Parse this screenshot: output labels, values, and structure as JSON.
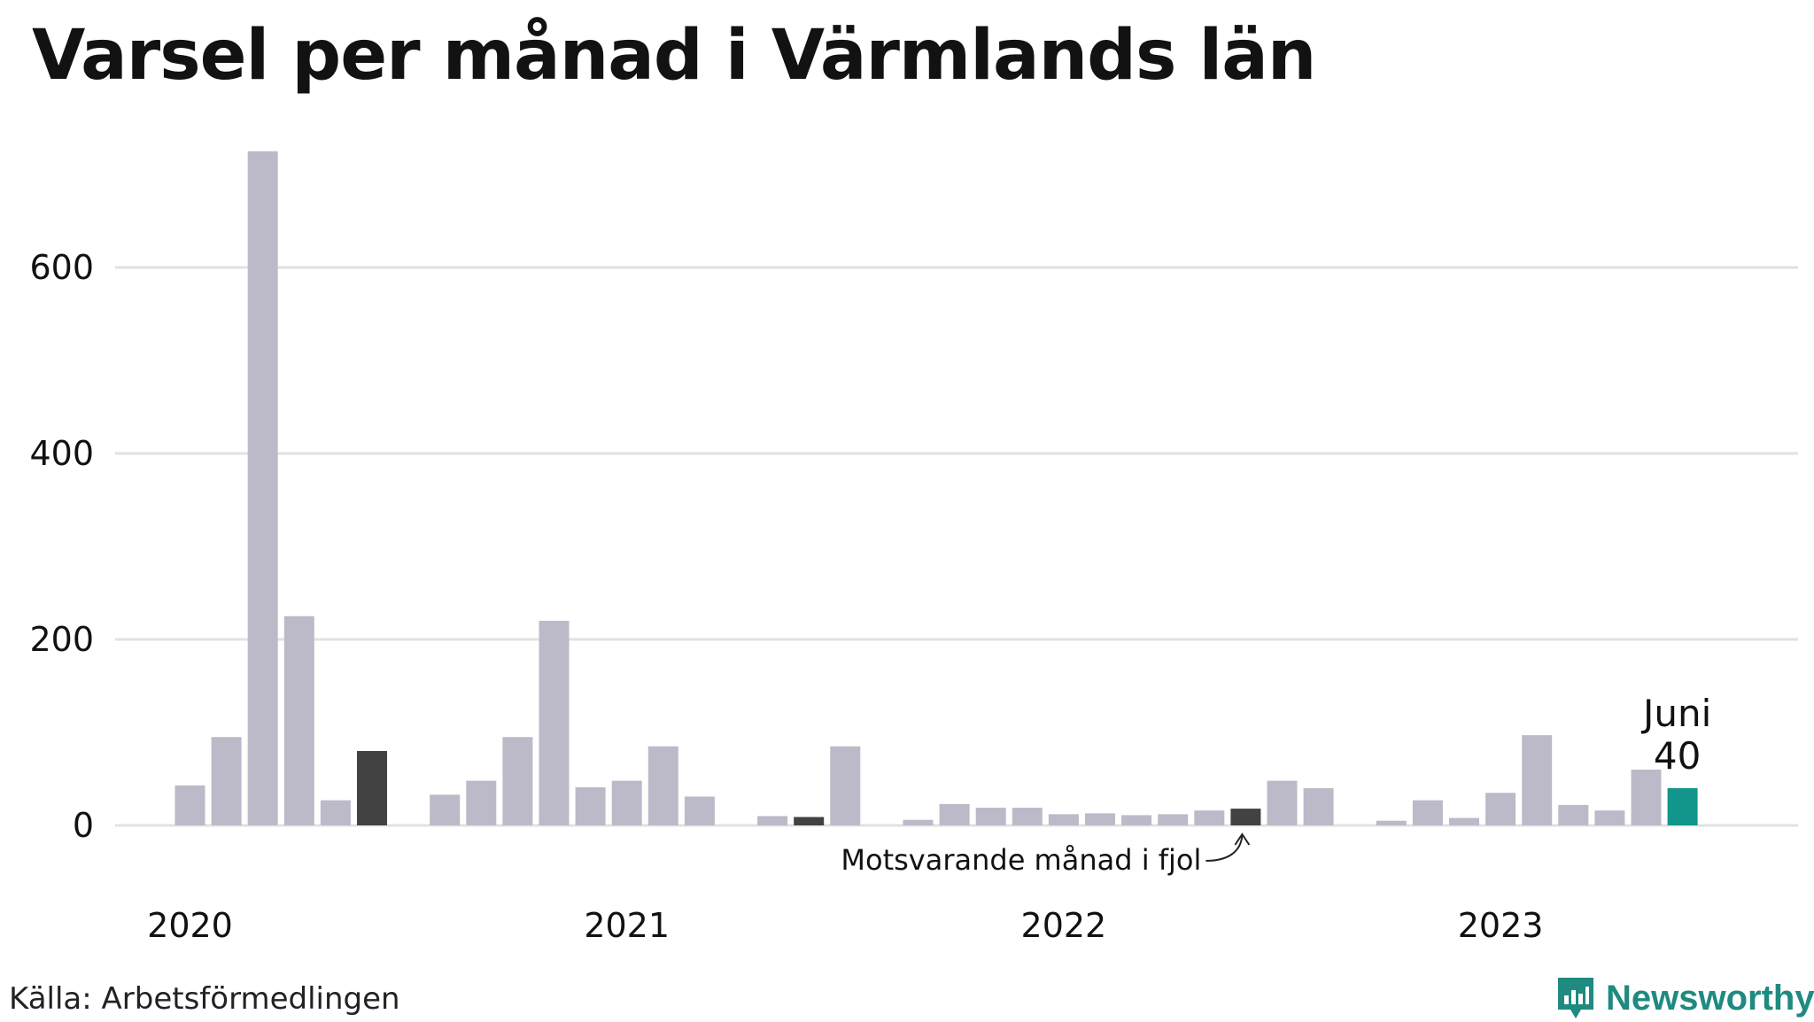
{
  "title": "Varsel per månad i Värmlands län",
  "source": "Källa: Arbetsförmedlingen",
  "brand": {
    "name": "Newsworthy",
    "icon": "newsworthy-logo-icon",
    "color": "#1f8a80"
  },
  "colors": {
    "bar": "#bcbac8",
    "same_month_last_years": "#424242",
    "current": "#12958a",
    "grid": "#e2e2e2"
  },
  "chart_data": {
    "type": "bar",
    "title": "Varsel per månad i Värmlands län",
    "xlabel": "",
    "ylabel": "",
    "ylim": [
      0,
      720
    ],
    "yticks": [
      0,
      200,
      400,
      600
    ],
    "xtick_labels": [
      "2020",
      "2021",
      "2022",
      "2023"
    ],
    "grid": true,
    "x": [
      "2020-01",
      "2020-02",
      "2020-03",
      "2020-04",
      "2020-05",
      "2020-06",
      "2020-07",
      "2020-08",
      "2020-09",
      "2020-10",
      "2020-11",
      "2020-12",
      "2021-01",
      "2021-02",
      "2021-03",
      "2021-04",
      "2021-05",
      "2021-06",
      "2021-07",
      "2021-08",
      "2021-09",
      "2021-10",
      "2021-11",
      "2021-12",
      "2022-01",
      "2022-02",
      "2022-03",
      "2022-04",
      "2022-05",
      "2022-06",
      "2022-07",
      "2022-08",
      "2022-09",
      "2022-10",
      "2022-11",
      "2022-12",
      "2023-01",
      "2023-02",
      "2023-03",
      "2023-04",
      "2023-05",
      "2023-06"
    ],
    "values": [
      43,
      95,
      725,
      225,
      27,
      80,
      0,
      33,
      48,
      95,
      220,
      41,
      48,
      85,
      31,
      0,
      10,
      9,
      85,
      0,
      6,
      23,
      19,
      19,
      12,
      13,
      11,
      12,
      16,
      18,
      48,
      40,
      0,
      5,
      27,
      8,
      35,
      97,
      22,
      16,
      60,
      40
    ],
    "highlight_last_years": [
      "2020-06",
      "2021-06",
      "2022-06"
    ],
    "highlight_current": "2023-06",
    "annotations": {
      "current_month": "Juni",
      "current_value": "40",
      "last_year_note": "Motsvarande månad i fjol"
    }
  }
}
